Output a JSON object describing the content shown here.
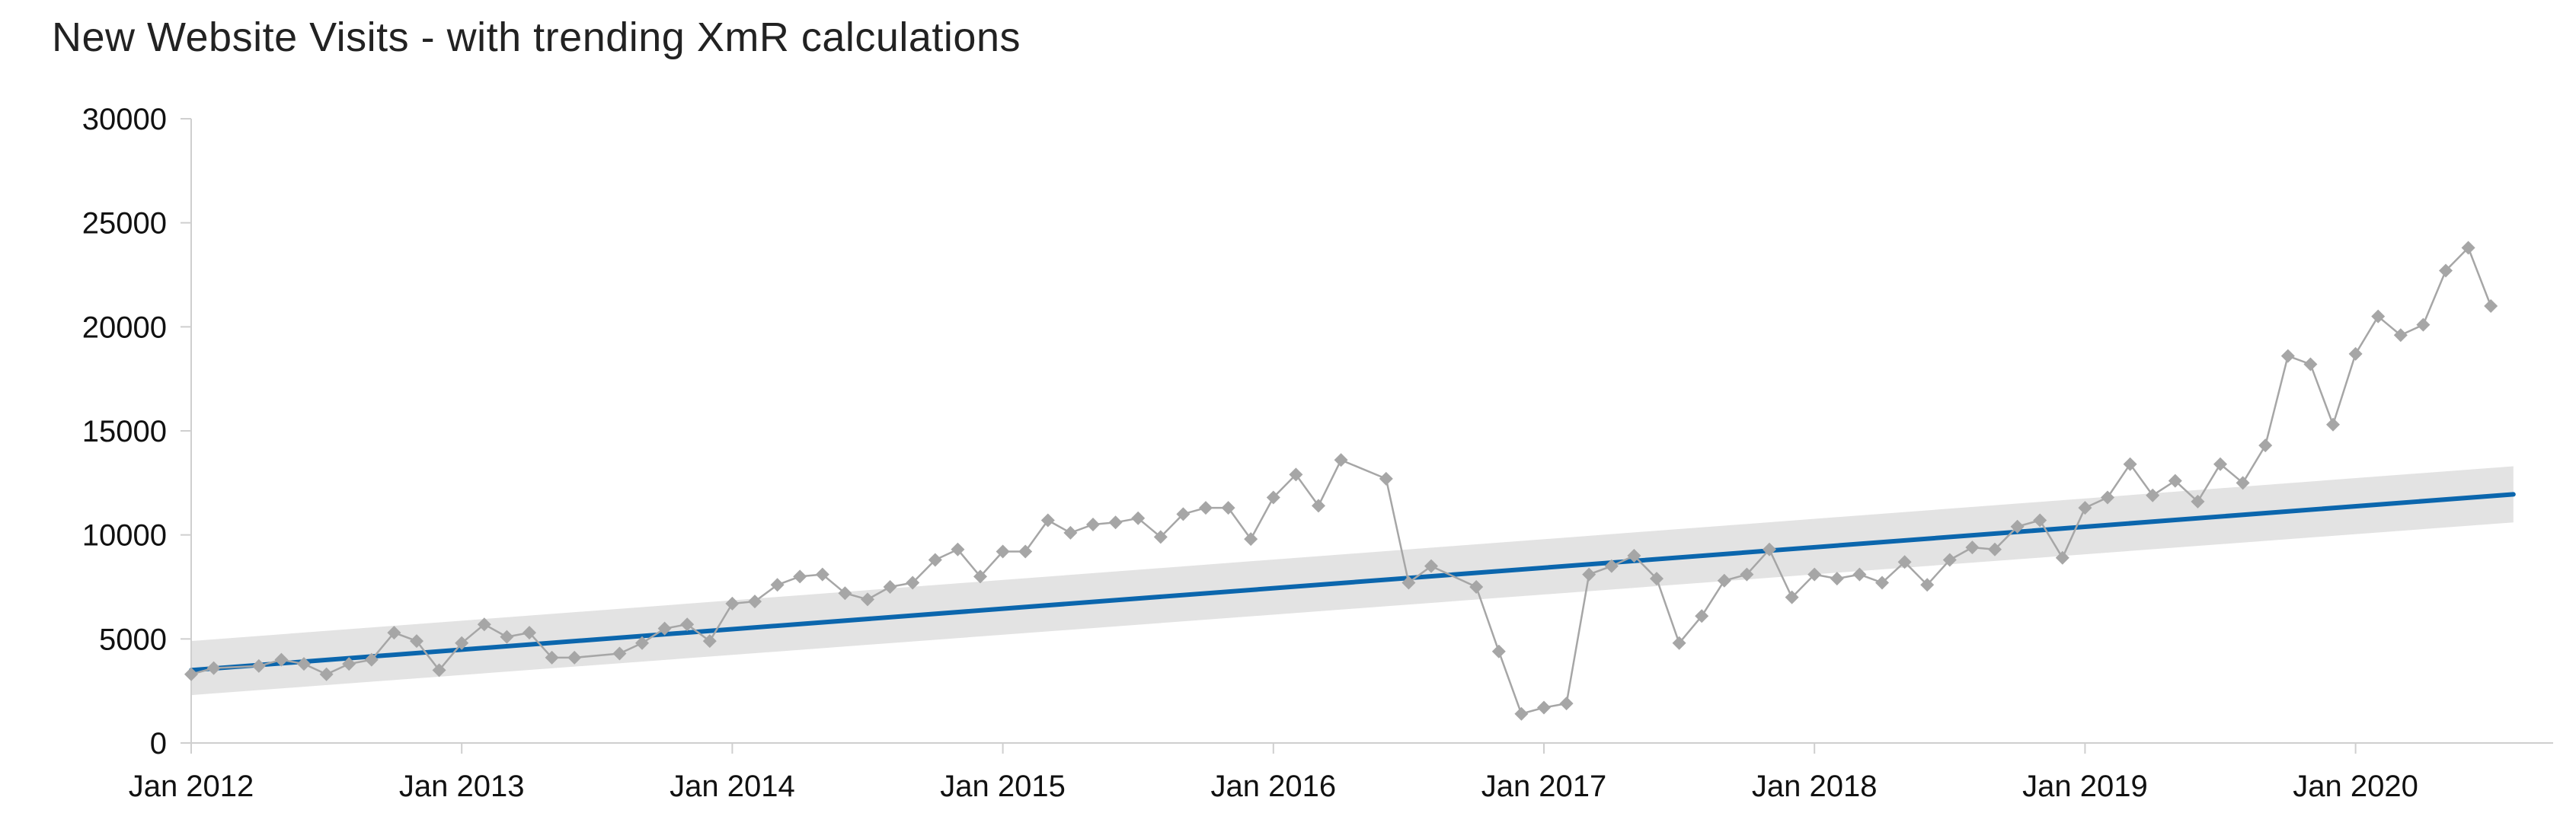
{
  "chart_data": {
    "type": "line",
    "title": "New Website Visits - with trending XmR calculations",
    "xlabel": "",
    "ylabel": "",
    "ylim": [
      0,
      30000
    ],
    "y_ticks": [
      "30000",
      "25000",
      "20000",
      "15000",
      "10000",
      "5000",
      "0"
    ],
    "x_ticks": [
      "Jan 2012",
      "Jan 2013",
      "Jan 2014",
      "Jan 2015",
      "Jan 2016",
      "Jan 2017",
      "Jan 2018",
      "Jan 2019",
      "Jan 2020"
    ],
    "x_range": [
      "2012-01",
      "2020-08"
    ],
    "grid": false,
    "legend": "none",
    "colors": {
      "visits": "#a6a6a6",
      "trend": "#0b66ad",
      "band": "#e3e3e3",
      "axis": "#cfcfcf"
    },
    "series": [
      {
        "type": "line",
        "marker": "diamond",
        "x": [
          "2012-01",
          "2012-02",
          "2012-04",
          "2012-05",
          "2012-06",
          "2012-07",
          "2012-08",
          "2012-09",
          "2012-10",
          "2012-11",
          "2012-12",
          "2013-01",
          "2013-02",
          "2013-03",
          "2013-04",
          "2013-05",
          "2013-06",
          "2013-08",
          "2013-09",
          "2013-10",
          "2013-11",
          "2013-12",
          "2014-01",
          "2014-02",
          "2014-03",
          "2014-04",
          "2014-05",
          "2014-06",
          "2014-07",
          "2014-08",
          "2014-09",
          "2014-10",
          "2014-11",
          "2014-12",
          "2015-01",
          "2015-02",
          "2015-03",
          "2015-04",
          "2015-05",
          "2015-06",
          "2015-07",
          "2015-08",
          "2015-09",
          "2015-10",
          "2015-11",
          "2015-12",
          "2016-01",
          "2016-02",
          "2016-03",
          "2016-04",
          "2016-06",
          "2016-07",
          "2016-08",
          "2016-10",
          "2016-11",
          "2016-12",
          "2017-01",
          "2017-02",
          "2017-03",
          "2017-04",
          "2017-05",
          "2017-06",
          "2017-07",
          "2017-08",
          "2017-09",
          "2017-10",
          "2017-11",
          "2017-12",
          "2018-01",
          "2018-02",
          "2018-03",
          "2018-04",
          "2018-05",
          "2018-06",
          "2018-07",
          "2018-08",
          "2018-09",
          "2018-10",
          "2018-11",
          "2018-12",
          "2019-01",
          "2019-02",
          "2019-03",
          "2019-04",
          "2019-05",
          "2019-06",
          "2019-07",
          "2019-08",
          "2019-09",
          "2019-10",
          "2019-11",
          "2019-12",
          "2020-01",
          "2020-02",
          "2020-03",
          "2020-04",
          "2020-05",
          "2020-06",
          "2020-07"
        ],
        "values": [
          3300,
          3600,
          3700,
          4000,
          3800,
          3300,
          3800,
          4000,
          5300,
          4900,
          3500,
          4800,
          5700,
          5100,
          5300,
          4100,
          4100,
          4300,
          4800,
          5500,
          5700,
          4900,
          6700,
          6800,
          7600,
          8000,
          8100,
          7200,
          6900,
          7500,
          7700,
          8800,
          9300,
          8000,
          9200,
          9200,
          10700,
          10100,
          10500,
          10600,
          10800,
          9900,
          11000,
          11300,
          11300,
          9800,
          11800,
          12900,
          11400,
          13600,
          12700,
          7700,
          8500,
          7500,
          4400,
          1400,
          1700,
          1900,
          8100,
          8500,
          9000,
          7900,
          4800,
          6100,
          7800,
          8100,
          9300,
          7000,
          8100,
          7900,
          8100,
          7700,
          8700,
          7600,
          8800,
          9400,
          9300,
          10400,
          10700,
          8900,
          11300,
          11800,
          13400,
          11900,
          12600,
          11600,
          13400,
          12500,
          14300,
          18600,
          18200,
          15300,
          18700,
          20500,
          19600,
          20100,
          22700,
          23800,
          21000
        ]
      },
      {
        "type": "line",
        "x": [
          "2012-01",
          "2020-08"
        ],
        "values": [
          3500,
          11950
        ]
      },
      {
        "type": "area",
        "x": [
          "2012-01",
          "2020-08"
        ],
        "lower": [
          2300,
          10600
        ],
        "upper": [
          4900,
          13300
        ]
      }
    ]
  }
}
